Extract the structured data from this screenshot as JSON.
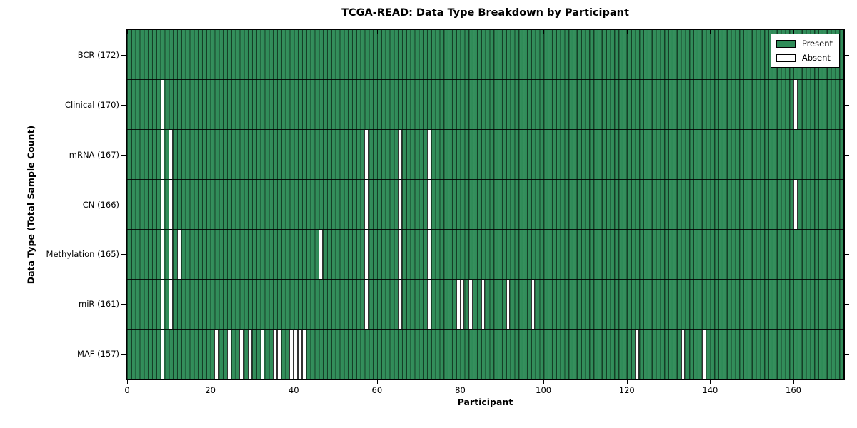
{
  "chart_data": {
    "type": "heatmap",
    "title": "TCGA-READ: Data Type Breakdown by Participant",
    "xlabel": "Participant",
    "ylabel": "Data Type (Total Sample Count)",
    "n_participants": 172,
    "x_ticks": [
      0,
      20,
      40,
      60,
      80,
      100,
      120,
      140,
      160
    ],
    "xlim": [
      0,
      172
    ],
    "grid": "per-participant vertical bar edges, horizontal row separators",
    "legend_position": "upper right",
    "legend": [
      {
        "label": "Present",
        "color": "#2e8b57"
      },
      {
        "label": "Absent",
        "color": "#ffffff"
      }
    ],
    "rows": [
      {
        "name": "BCR",
        "count": 172,
        "label": "BCR (172)",
        "absent_participants": []
      },
      {
        "name": "Clinical",
        "count": 170,
        "label": "Clinical (170)",
        "absent_participants": [
          8,
          160
        ]
      },
      {
        "name": "mRNA",
        "count": 167,
        "label": "mRNA (167)",
        "absent_participants": [
          8,
          10,
          57,
          65,
          72
        ]
      },
      {
        "name": "CN",
        "count": 166,
        "label": "CN (166)",
        "absent_participants": [
          8,
          10,
          57,
          65,
          72,
          160
        ]
      },
      {
        "name": "Methylation",
        "count": 165,
        "label": "Methylation (165)",
        "absent_participants": [
          8,
          10,
          12,
          46,
          57,
          65,
          72
        ]
      },
      {
        "name": "miR",
        "count": 161,
        "label": "miR (161)",
        "absent_participants": [
          8,
          10,
          57,
          65,
          72,
          79,
          80,
          82,
          85,
          91,
          97
        ]
      },
      {
        "name": "MAF",
        "count": 157,
        "label": "MAF (157)",
        "absent_participants": [
          8,
          21,
          24,
          27,
          29,
          32,
          35,
          36,
          39,
          40,
          41,
          42,
          122,
          133,
          138
        ]
      }
    ],
    "colors": {
      "present": "#2e8b57",
      "absent": "#ffffff",
      "axis": "#000000"
    }
  }
}
